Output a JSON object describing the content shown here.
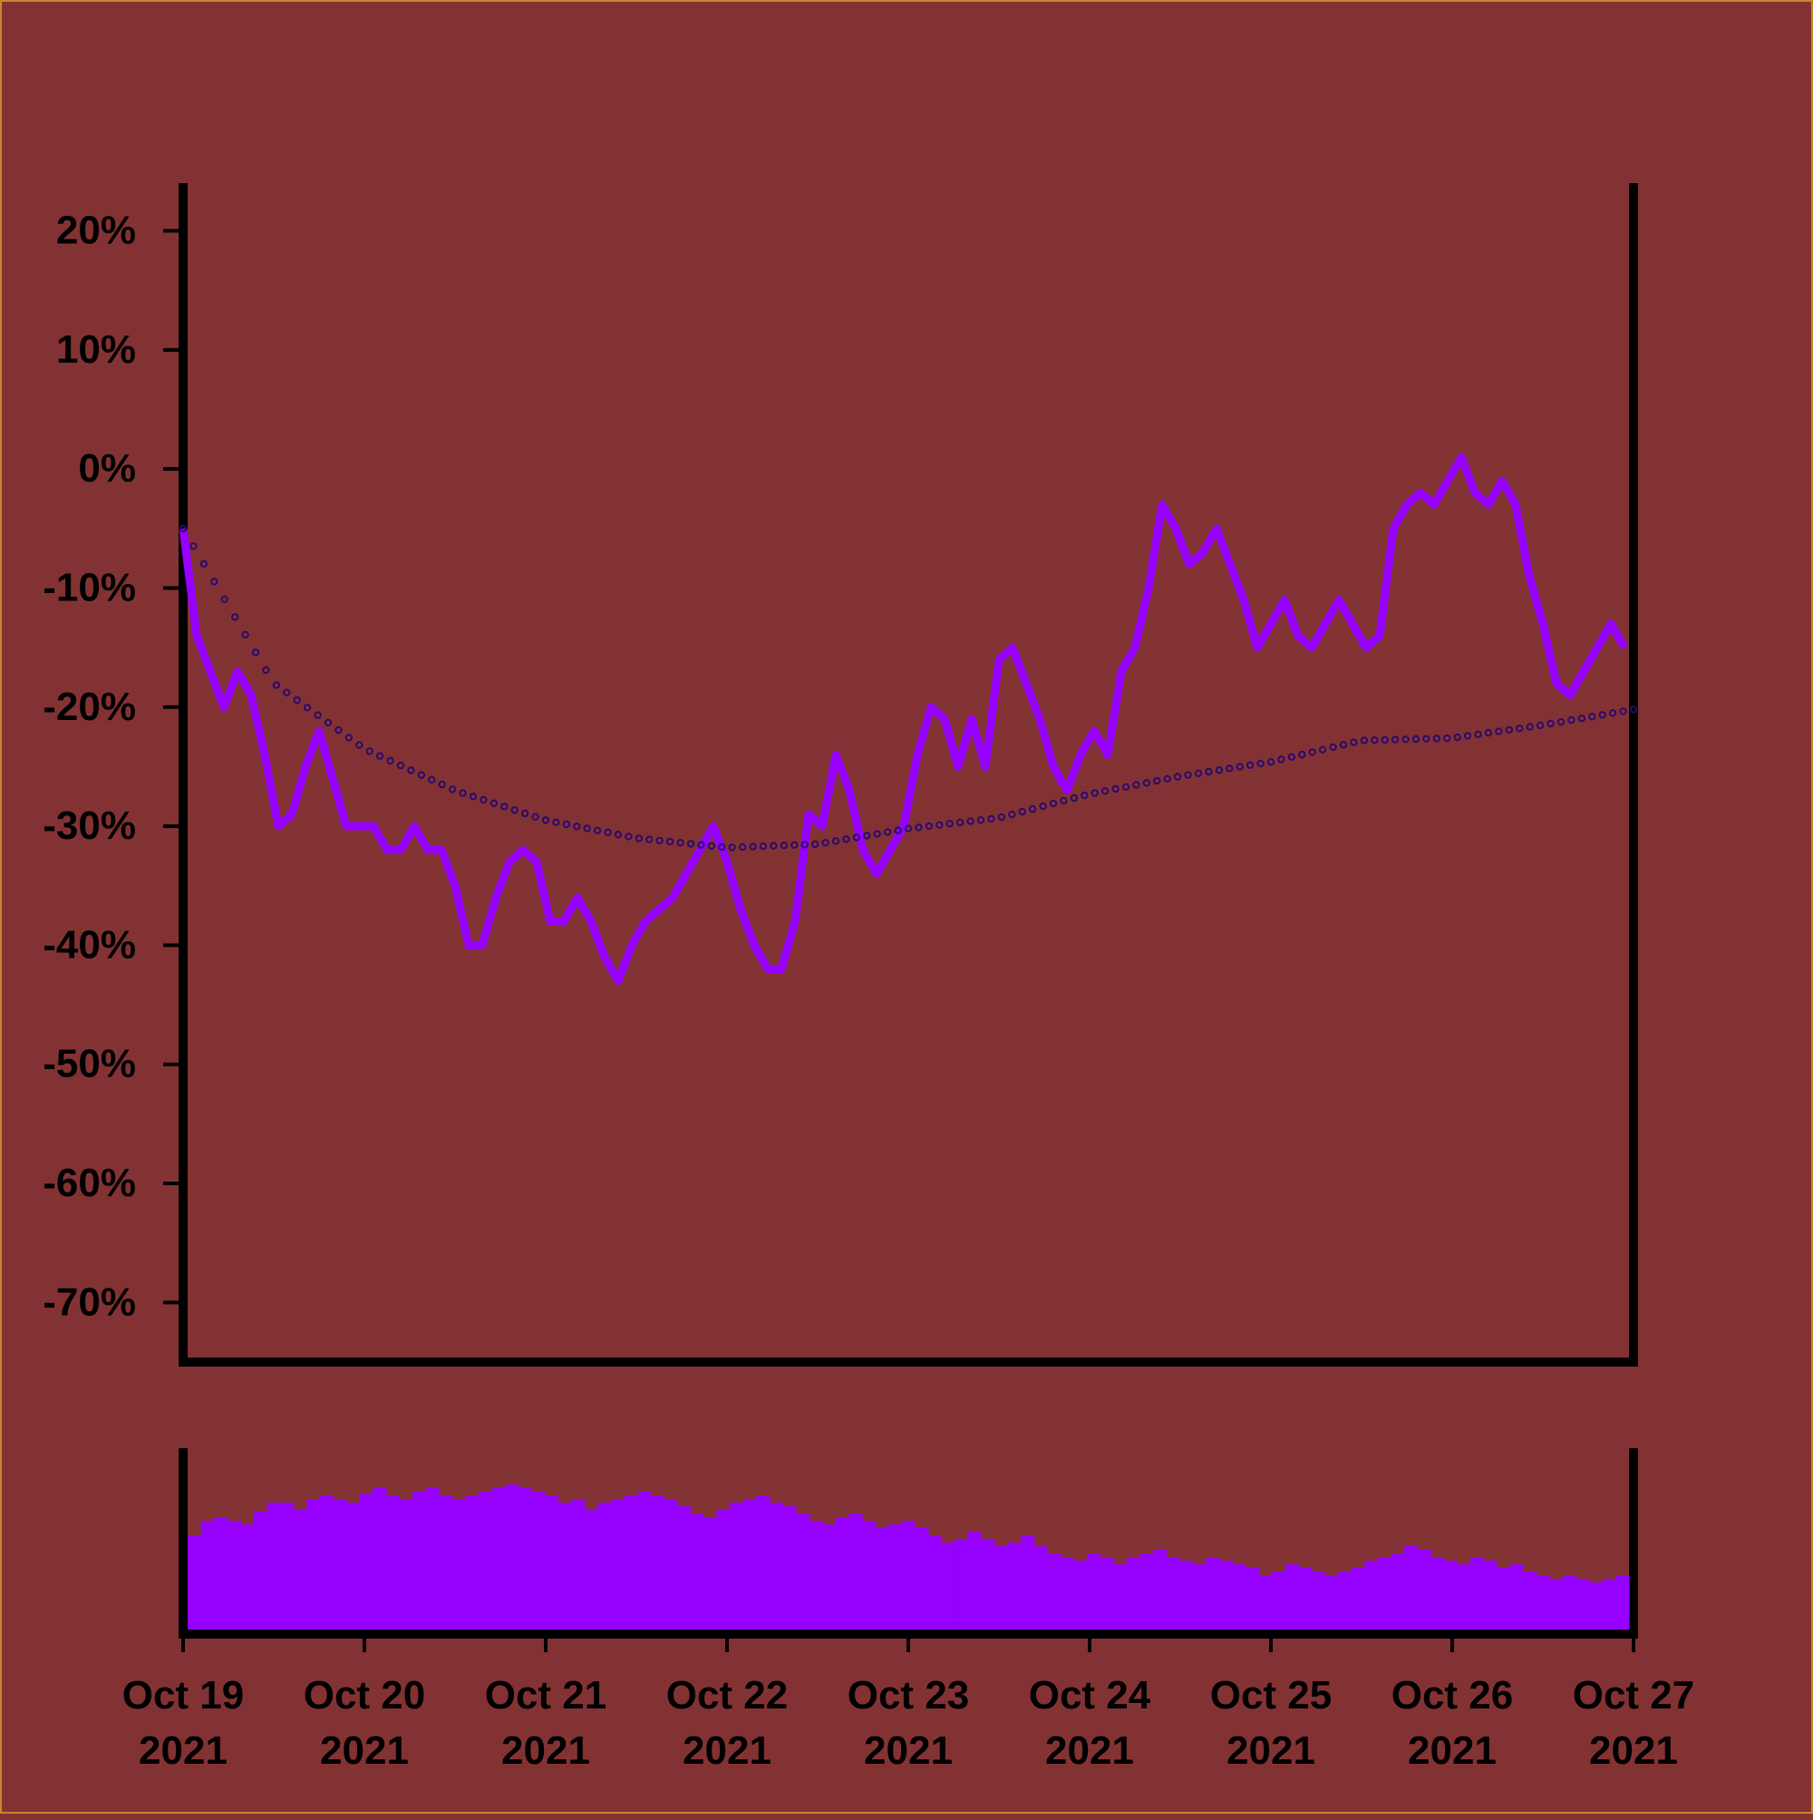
{
  "colors": {
    "background": "#833234",
    "series": "#9500ff",
    "trend": "#2a0a6e",
    "axis": "#000000",
    "frame": "#c8862a"
  },
  "chart_data": [
    {
      "type": "line",
      "panel": "price",
      "title": "",
      "xlabel": "",
      "ylabel": "",
      "ylim": [
        -75,
        24
      ],
      "xlim": [
        "2021-10-19T00:00",
        "2021-10-27T00:00"
      ],
      "y_ticks": [
        "20%",
        "10%",
        "0%",
        "-10%",
        "-20%",
        "-30%",
        "-40%",
        "-50%",
        "-60%",
        "-70%"
      ],
      "y_tick_values": [
        20,
        10,
        0,
        -10,
        -20,
        -30,
        -40,
        -50,
        -60,
        -70
      ],
      "grid": false,
      "series": [
        {
          "key": "performance",
          "style": "line",
          "x": [
            "2021-10-19T00:00",
            "2021-10-19T01:48",
            "2021-10-19T03:36",
            "2021-10-19T05:24",
            "2021-10-19T07:12",
            "2021-10-19T09:00",
            "2021-10-19T10:48",
            "2021-10-19T12:36",
            "2021-10-19T14:24",
            "2021-10-19T16:12",
            "2021-10-19T18:00",
            "2021-10-19T19:48",
            "2021-10-19T21:36",
            "2021-10-19T23:24",
            "2021-10-20T01:12",
            "2021-10-20T03:00",
            "2021-10-20T04:48",
            "2021-10-20T06:36",
            "2021-10-20T08:24",
            "2021-10-20T10:12",
            "2021-10-20T12:00",
            "2021-10-20T13:48",
            "2021-10-20T15:36",
            "2021-10-20T17:24",
            "2021-10-20T19:12",
            "2021-10-20T21:00",
            "2021-10-20T22:48",
            "2021-10-21T00:36",
            "2021-10-21T02:24",
            "2021-10-21T04:12",
            "2021-10-21T06:00",
            "2021-10-21T07:48",
            "2021-10-21T09:36",
            "2021-10-21T11:24",
            "2021-10-21T13:12",
            "2021-10-21T15:00",
            "2021-10-21T16:48",
            "2021-10-21T18:36",
            "2021-10-21T20:24",
            "2021-10-21T22:12",
            "2021-10-22T00:00",
            "2021-10-22T01:48",
            "2021-10-22T03:36",
            "2021-10-22T05:24",
            "2021-10-22T07:12",
            "2021-10-22T09:00",
            "2021-10-22T10:48",
            "2021-10-22T12:36",
            "2021-10-22T14:24",
            "2021-10-22T16:12",
            "2021-10-22T18:00",
            "2021-10-22T19:48",
            "2021-10-22T21:36",
            "2021-10-22T23:24",
            "2021-10-23T01:12",
            "2021-10-23T03:00",
            "2021-10-23T04:48",
            "2021-10-23T06:36",
            "2021-10-23T08:24",
            "2021-10-23T10:12",
            "2021-10-23T12:00",
            "2021-10-23T13:48",
            "2021-10-23T15:36",
            "2021-10-23T17:24",
            "2021-10-23T19:12",
            "2021-10-23T21:00",
            "2021-10-23T22:48",
            "2021-10-24T00:36",
            "2021-10-24T02:24",
            "2021-10-24T04:12",
            "2021-10-24T06:00",
            "2021-10-24T07:48",
            "2021-10-24T09:36",
            "2021-10-24T11:24",
            "2021-10-24T13:12",
            "2021-10-24T15:00",
            "2021-10-24T16:48",
            "2021-10-24T18:36",
            "2021-10-24T20:24",
            "2021-10-24T22:12",
            "2021-10-25T00:00",
            "2021-10-25T01:48",
            "2021-10-25T03:36",
            "2021-10-25T05:24",
            "2021-10-25T07:12",
            "2021-10-25T09:00",
            "2021-10-25T10:48",
            "2021-10-25T12:36",
            "2021-10-25T14:24",
            "2021-10-25T16:12",
            "2021-10-25T18:00",
            "2021-10-25T19:48",
            "2021-10-25T21:36",
            "2021-10-25T23:24",
            "2021-10-26T01:12",
            "2021-10-26T03:00",
            "2021-10-26T04:48",
            "2021-10-26T06:36",
            "2021-10-26T08:24",
            "2021-10-26T10:12",
            "2021-10-26T12:00",
            "2021-10-26T13:48",
            "2021-10-26T15:36",
            "2021-10-26T17:24",
            "2021-10-26T19:12",
            "2021-10-26T21:00",
            "2021-10-26T22:48"
          ],
          "values": [
            -5,
            -14,
            -17,
            -20,
            -17,
            -19,
            -24,
            -30,
            -29,
            -25,
            -22,
            -26,
            -30,
            -30,
            -30,
            -32,
            -32,
            -30,
            -32,
            -32,
            -35,
            -40,
            -40,
            -36,
            -33,
            -32,
            -33,
            -38,
            -38,
            -36,
            -38,
            -41,
            -43,
            -40,
            -38,
            -37,
            -36,
            -34,
            -32,
            -30,
            -33,
            -37,
            -40,
            -42,
            -42,
            -38,
            -29,
            -30,
            -24,
            -27,
            -32,
            -34,
            -32,
            -30,
            -24,
            -20,
            -21,
            -25,
            -21,
            -25,
            -16,
            -15,
            -18,
            -21,
            -25,
            -27,
            -24,
            -22,
            -24,
            -17,
            -15,
            -10,
            -3,
            -5,
            -8,
            -7,
            -5,
            -8,
            -11,
            -15,
            -13,
            -11,
            -14,
            -15,
            -13,
            -11,
            -13,
            -15,
            -14,
            -5,
            -3,
            -2,
            -3,
            -1,
            1,
            -2,
            -3,
            -1,
            -3,
            -9,
            -13,
            -18,
            -19,
            -17,
            -15,
            -13,
            -15
          ]
        },
        {
          "key": "trend",
          "style": "dotted",
          "x": [
            "2021-10-19T00:00",
            "2021-10-19T12:00",
            "2021-10-20T00:00",
            "2021-10-20T12:00",
            "2021-10-21T00:00",
            "2021-10-21T12:00",
            "2021-10-22T00:00",
            "2021-10-22T12:00",
            "2021-10-23T00:00",
            "2021-10-23T12:00",
            "2021-10-24T00:00",
            "2021-10-24T12:00",
            "2021-10-25T00:00",
            "2021-10-25T12:00",
            "2021-10-26T00:00",
            "2021-10-26T12:00",
            "2021-10-27T00:00"
          ],
          "values": [
            -5,
            -18,
            -23.5,
            -27,
            -29.5,
            -31,
            -31.8,
            -31.5,
            -30.2,
            -29.3,
            -27.3,
            -25.8,
            -24.6,
            -22.8,
            -22.6,
            -21.5,
            -20.2
          ]
        }
      ]
    },
    {
      "type": "bar",
      "panel": "volume",
      "title": "",
      "xlabel": "",
      "ylabel": "",
      "ylim": [
        0,
        1
      ],
      "x_ticks": [
        {
          "line1": "Oct 19",
          "line2": "2021"
        },
        {
          "line1": "Oct 20",
          "line2": "2021"
        },
        {
          "line1": "Oct 21",
          "line2": "2021"
        },
        {
          "line1": "Oct 22",
          "line2": "2021"
        },
        {
          "line1": "Oct 23",
          "line2": "2021"
        },
        {
          "line1": "Oct 24",
          "line2": "2021"
        },
        {
          "line1": "Oct 25",
          "line2": "2021"
        },
        {
          "line1": "Oct 26",
          "line2": "2021"
        },
        {
          "line1": "Oct 27",
          "line2": "2021"
        }
      ],
      "values": [
        0.52,
        0.6,
        0.62,
        0.6,
        0.58,
        0.65,
        0.7,
        0.7,
        0.66,
        0.72,
        0.74,
        0.72,
        0.7,
        0.75,
        0.78,
        0.74,
        0.72,
        0.76,
        0.78,
        0.74,
        0.72,
        0.74,
        0.76,
        0.78,
        0.8,
        0.78,
        0.76,
        0.74,
        0.7,
        0.72,
        0.66,
        0.7,
        0.72,
        0.74,
        0.76,
        0.74,
        0.72,
        0.68,
        0.64,
        0.62,
        0.66,
        0.7,
        0.72,
        0.74,
        0.7,
        0.68,
        0.64,
        0.6,
        0.58,
        0.62,
        0.64,
        0.6,
        0.56,
        0.58,
        0.6,
        0.56,
        0.52,
        0.48,
        0.5,
        0.54,
        0.5,
        0.46,
        0.48,
        0.52,
        0.46,
        0.42,
        0.4,
        0.38,
        0.42,
        0.4,
        0.36,
        0.4,
        0.42,
        0.44,
        0.4,
        0.38,
        0.36,
        0.4,
        0.38,
        0.36,
        0.34,
        0.3,
        0.32,
        0.36,
        0.34,
        0.32,
        0.3,
        0.32,
        0.34,
        0.38,
        0.4,
        0.42,
        0.46,
        0.44,
        0.4,
        0.38,
        0.36,
        0.4,
        0.38,
        0.34,
        0.36,
        0.32,
        0.3,
        0.28,
        0.3,
        0.28,
        0.26,
        0.28,
        0.3
      ]
    }
  ]
}
